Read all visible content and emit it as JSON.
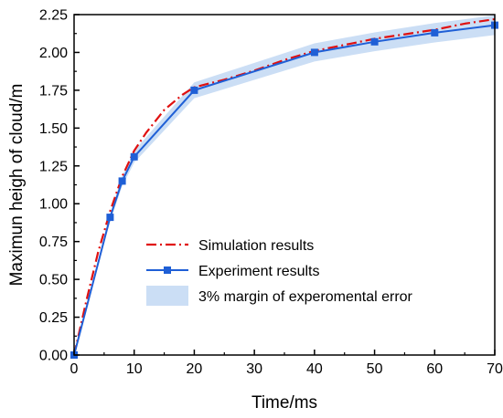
{
  "chart_data": {
    "type": "line",
    "title": "",
    "xlabel": "Time/ms",
    "ylabel": "Maximun heigh of cloud/m",
    "xlim": [
      0,
      70
    ],
    "ylim": [
      0,
      2.25
    ],
    "x_ticks": [
      0,
      10,
      20,
      30,
      40,
      50,
      60,
      70
    ],
    "y_ticks": [
      0.0,
      0.25,
      0.5,
      0.75,
      1.0,
      1.25,
      1.5,
      1.75,
      2.0,
      2.25
    ],
    "x_tick_labels": [
      "0",
      "10",
      "20",
      "30",
      "40",
      "50",
      "60",
      "70"
    ],
    "y_tick_labels": [
      "0.00",
      "0.25",
      "0.50",
      "0.75",
      "1.00",
      "1.25",
      "1.50",
      "1.75",
      "2.00",
      "2.25"
    ],
    "grid": false,
    "legend_position": "bottom-right",
    "series": [
      {
        "name": "Simulation results",
        "color": "#e01010",
        "style": "dash-dot",
        "x": [
          0,
          2,
          4,
          6,
          8,
          10,
          12,
          15,
          18,
          20,
          25,
          30,
          35,
          40,
          45,
          50,
          55,
          60,
          65,
          70
        ],
        "y": [
          0,
          0.35,
          0.68,
          0.95,
          1.18,
          1.35,
          1.47,
          1.62,
          1.72,
          1.77,
          1.82,
          1.88,
          1.95,
          2.01,
          2.05,
          2.09,
          2.12,
          2.15,
          2.19,
          2.22
        ]
      },
      {
        "name": "Experiment results",
        "color": "#1f5fd6",
        "style": "solid-square",
        "x": [
          0,
          6,
          8,
          10,
          20,
          40,
          50,
          60,
          70
        ],
        "y": [
          0,
          0.91,
          1.15,
          1.31,
          1.75,
          2.0,
          2.07,
          2.13,
          2.18
        ]
      }
    ],
    "band": {
      "name": "3% margin of experomental error",
      "color": "#b9d3f1",
      "relative_margin": 0.03
    }
  }
}
